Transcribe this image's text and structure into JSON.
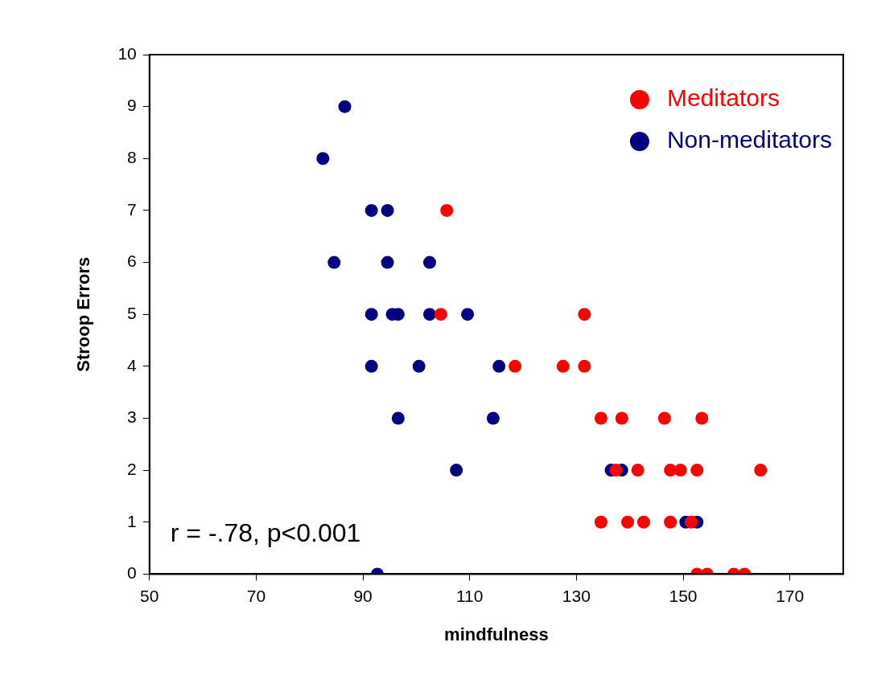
{
  "chart_data": {
    "type": "scatter",
    "xlabel": "mindfulness",
    "ylabel": "Stroop Errors",
    "xlim": [
      50,
      180
    ],
    "xticks": [
      50,
      70,
      90,
      110,
      130,
      150,
      170
    ],
    "ylim": [
      0,
      10
    ],
    "yticks": [
      0,
      1,
      2,
      3,
      4,
      5,
      6,
      7,
      8,
      9,
      10
    ],
    "grid": false,
    "legend": "top right",
    "marker": "circle",
    "annotations": [
      "r = -.78, p<0.001"
    ],
    "series": [
      {
        "name": "Meditators",
        "color": "#ff0000",
        "x": [
          105.7,
          104.6,
          131.5,
          118.5,
          127.5,
          131.5,
          134.6,
          138.5,
          146.5,
          153.5,
          137.4,
          141.5,
          147.6,
          149.5,
          152.6,
          164.5,
          134.6,
          139.6,
          142.6,
          147.6,
          151.5,
          152.6,
          154.5,
          159.5,
          161.5
        ],
        "values": [
          7,
          5,
          5,
          4,
          4,
          4,
          3,
          3,
          3,
          3,
          2,
          2,
          2,
          2,
          2,
          2,
          1,
          1,
          1,
          1,
          1,
          0,
          0,
          0,
          0
        ]
      },
      {
        "name": "Non-meditators",
        "color": "#000080",
        "x": [
          86.6,
          82.5,
          91.6,
          94.6,
          84.6,
          94.6,
          102.5,
          91.6,
          95.5,
          96.6,
          102.5,
          109.6,
          91.6,
          100.5,
          115.5,
          96.6,
          114.4,
          107.5,
          136.5,
          138.5,
          150.5,
          152.6,
          92.7
        ],
        "values": [
          9,
          8,
          7,
          7,
          6,
          6,
          6,
          5,
          5,
          5,
          5,
          5,
          4,
          4,
          4,
          3,
          3,
          2,
          2,
          2,
          1,
          1,
          0
        ]
      }
    ]
  }
}
